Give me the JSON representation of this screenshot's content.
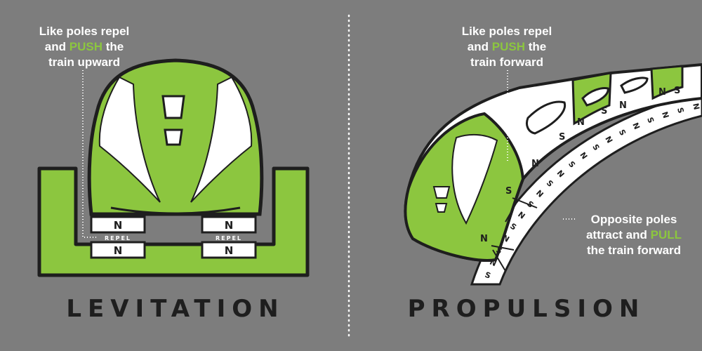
{
  "panels": {
    "levitation": {
      "title": "LEVITATION",
      "caption_line1": "Like poles repel",
      "caption_line2_a": "and",
      "caption_line2_highlight": "PUSH",
      "caption_line2_b": "the",
      "caption_line3": "train upward",
      "magnet_label": "N",
      "repel_label": "REPEL"
    },
    "propulsion": {
      "title": "PROPULSION",
      "caption_top_line1": "Like poles repel",
      "caption_top_line2_a": "and",
      "caption_top_line2_highlight": "PUSH",
      "caption_top_line2_b": "the",
      "caption_top_line3": "train forward",
      "caption_side_line1": "Opposite poles",
      "caption_side_line2_a": "attract and",
      "caption_side_line2_highlight": "PULL",
      "caption_side_line3": "the train forward",
      "pole_n": "N",
      "pole_s": "S"
    }
  },
  "colors": {
    "background": "#7d7d7d",
    "accent_green": "#8cc63f",
    "outline": "#1e1e1e",
    "white": "#ffffff"
  }
}
